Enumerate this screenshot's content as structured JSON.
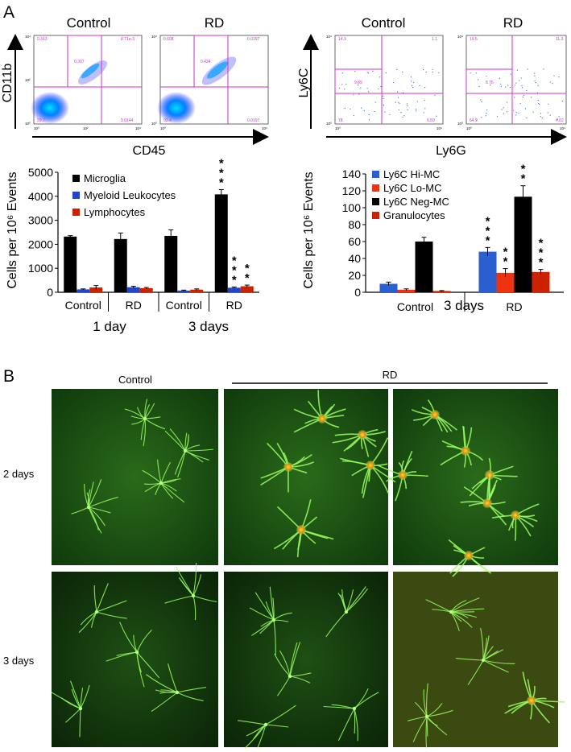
{
  "panel_labels": {
    "a": "A",
    "b": "B"
  },
  "flow_left": {
    "plot_titles": [
      "Control",
      "RD"
    ],
    "y_axis_label": "CD11b",
    "x_axis_label": "CD45",
    "tick_labels": [
      "10⁰",
      "10¹",
      "10²",
      "10³",
      "10⁴"
    ],
    "quadrant_values": [
      [
        "0.313",
        "8.71e-3",
        "0.0144",
        "93.7",
        "0.307"
      ],
      [
        "0.608",
        "0.0197",
        "0.0197",
        "93.4",
        "0.434"
      ]
    ]
  },
  "flow_right": {
    "plot_titles": [
      "Control",
      "RD"
    ],
    "y_axis_label": "Ly6C",
    "x_axis_label": "Ly6G",
    "tick_labels": [
      "10⁰",
      "10¹",
      "10²",
      "10³",
      "10⁴"
    ],
    "quadrant_values": [
      [
        "14.3",
        "1.1",
        "9.89",
        "78",
        "6.59"
      ],
      [
        "19.5",
        "11.3",
        "8.75",
        "64.9",
        "4.02"
      ]
    ]
  },
  "chart_data": [
    {
      "type": "bar",
      "ylabel": "Cells per 10⁶ Events",
      "ylim": [
        0,
        5000
      ],
      "yticks": [
        "0",
        "1000",
        "2000",
        "3000",
        "4000",
        "5000"
      ],
      "categories": [
        "Control",
        "RD",
        "Control",
        "RD"
      ],
      "groups": [
        "1 day",
        "3 days"
      ],
      "legend_position": "top-left",
      "series": [
        {
          "name": "Microglia",
          "color": "#000000",
          "values": [
            2320,
            2220,
            2350,
            4080
          ],
          "errors": [
            40,
            250,
            250,
            200
          ]
        },
        {
          "name": "Myeloid Leukocytes",
          "color": "#2244cc",
          "values": [
            120,
            210,
            70,
            190
          ],
          "errors": [
            20,
            40,
            20,
            30
          ]
        },
        {
          "name": "Lymphocytes",
          "color": "#cc2200",
          "values": [
            200,
            170,
            110,
            250
          ],
          "errors": [
            80,
            30,
            30,
            50
          ]
        }
      ],
      "significance": [
        {
          "category": 3,
          "series": 0,
          "stars": "***"
        },
        {
          "category": 3,
          "series": 1,
          "stars": "***"
        },
        {
          "category": 3,
          "series": 2,
          "stars": "**"
        }
      ],
      "grid": false
    },
    {
      "type": "bar",
      "ylabel": "Cells per 10⁶ Events",
      "ylim": [
        0,
        140
      ],
      "yticks": [
        "0",
        "20",
        "40",
        "60",
        "80",
        "100",
        "120",
        "140"
      ],
      "categories": [
        "Control",
        "RD"
      ],
      "groups": [
        "3 days"
      ],
      "legend_position": "top-left",
      "series": [
        {
          "name": "Ly6C Hi-MC",
          "color": "#2a5fd0",
          "values": [
            10,
            48
          ],
          "errors": [
            2,
            5
          ]
        },
        {
          "name": "Ly6C Lo-MC",
          "color": "#ee3311",
          "values": [
            3,
            23
          ],
          "errors": [
            1,
            5
          ]
        },
        {
          "name": "Ly6C Neg-MC",
          "color": "#000000",
          "values": [
            60,
            113
          ],
          "errors": [
            5,
            13
          ]
        },
        {
          "name": "Granulocytes",
          "color": "#cc2200",
          "values": [
            1.5,
            24
          ],
          "errors": [
            0.5,
            3
          ]
        }
      ],
      "significance": [
        {
          "category": 1,
          "series": 0,
          "stars": "***"
        },
        {
          "category": 1,
          "series": 1,
          "stars": "**"
        },
        {
          "category": 1,
          "series": 2,
          "stars": "**"
        },
        {
          "category": 1,
          "series": 3,
          "stars": "***"
        }
      ],
      "grid": false
    }
  ],
  "micrographs": {
    "control_label": "Control",
    "rd_label": "RD",
    "row_labels": [
      "2 days",
      "3 days"
    ]
  }
}
